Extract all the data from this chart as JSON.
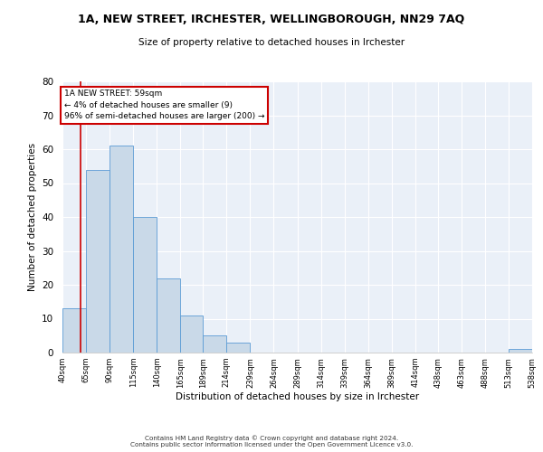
{
  "title1": "1A, NEW STREET, IRCHESTER, WELLINGBOROUGH, NN29 7AQ",
  "title2": "Size of property relative to detached houses in Irchester",
  "xlabel": "Distribution of detached houses by size in Irchester",
  "ylabel": "Number of detached properties",
  "bin_edges": [
    40,
    65,
    90,
    115,
    140,
    165,
    189,
    214,
    239,
    264,
    289,
    314,
    339,
    364,
    389,
    414,
    438,
    463,
    488,
    513,
    538
  ],
  "bar_heights": [
    13,
    54,
    61,
    40,
    22,
    11,
    5,
    3,
    0,
    0,
    0,
    0,
    0,
    0,
    0,
    0,
    0,
    0,
    0,
    1
  ],
  "bar_color": "#c9d9e8",
  "bar_edge_color": "#5b9bd5",
  "property_size": 59,
  "annotation_text": "1A NEW STREET: 59sqm\n← 4% of detached houses are smaller (9)\n96% of semi-detached houses are larger (200) →",
  "annotation_box_color": "#ffffff",
  "annotation_box_edge_color": "#cc0000",
  "vline_color": "#cc0000",
  "ylim": [
    0,
    80
  ],
  "yticks": [
    0,
    10,
    20,
    30,
    40,
    50,
    60,
    70,
    80
  ],
  "background_color": "#eaf0f8",
  "grid_color": "#ffffff",
  "footer1": "Contains HM Land Registry data © Crown copyright and database right 2024.",
  "footer2": "Contains public sector information licensed under the Open Government Licence v3.0.",
  "tick_labels": [
    "40sqm",
    "65sqm",
    "90sqm",
    "115sqm",
    "140sqm",
    "165sqm",
    "189sqm",
    "214sqm",
    "239sqm",
    "264sqm",
    "289sqm",
    "314sqm",
    "339sqm",
    "364sqm",
    "389sqm",
    "414sqm",
    "438sqm",
    "463sqm",
    "488sqm",
    "513sqm",
    "538sqm"
  ]
}
